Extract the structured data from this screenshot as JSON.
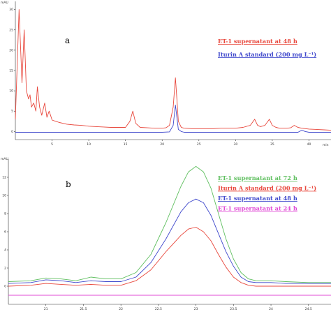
{
  "chart_data": [
    {
      "type": "line",
      "panel_label": "a",
      "y_unit": "mAU",
      "x_unit": "min",
      "x_ticks": [
        "5",
        "10",
        "15",
        "20",
        "25",
        "30",
        "35",
        "40"
      ],
      "y_ticks": [
        "0",
        "5",
        "10",
        "15",
        "20",
        "25",
        "30"
      ],
      "xlim": [
        0,
        43
      ],
      "ylim": [
        -2,
        32
      ],
      "series": [
        {
          "name": "ET-1 supernatant at 48 h",
          "color": "#e8473c",
          "x": [
            0.0,
            0.5,
            0.9,
            1.2,
            1.5,
            1.8,
            2.0,
            2.2,
            2.5,
            2.8,
            3.0,
            3.3,
            3.6,
            4.0,
            4.3,
            4.6,
            5.0,
            5.5,
            6.0,
            6.5,
            7.0,
            8.0,
            9.0,
            10.0,
            11.0,
            12.0,
            13.0,
            14.0,
            15.0,
            15.6,
            16.0,
            16.4,
            17.0,
            18.0,
            19.0,
            20.0,
            20.5,
            21.0,
            21.5,
            21.8,
            22.0,
            22.2,
            22.6,
            23.0,
            24.0,
            25.0,
            26.0,
            27.0,
            28.0,
            29.0,
            30.0,
            31.0,
            32.0,
            32.6,
            33.0,
            33.4,
            34.0,
            34.6,
            35.0,
            35.5,
            36.0,
            37.0,
            37.5,
            38.0,
            38.5,
            39.0,
            39.5,
            40.0,
            41.0,
            42.0,
            43.0
          ],
          "y": [
            3,
            30,
            12,
            25,
            10,
            8,
            9,
            6,
            7,
            5,
            11,
            6,
            4,
            7,
            3.5,
            5,
            2.8,
            2.5,
            2.2,
            2.0,
            1.8,
            1.6,
            1.5,
            1.3,
            1.2,
            1.1,
            1.0,
            1.0,
            1.0,
            2.5,
            5.0,
            2.0,
            1.0,
            0.9,
            0.8,
            0.8,
            0.9,
            1.5,
            6.0,
            13.2,
            8.0,
            2.5,
            1.0,
            0.8,
            0.7,
            0.7,
            0.7,
            0.7,
            0.8,
            0.8,
            0.8,
            1.0,
            1.5,
            3.0,
            1.5,
            1.2,
            1.5,
            3.0,
            1.5,
            1.0,
            0.8,
            0.8,
            0.9,
            1.5,
            1.0,
            0.8,
            0.7,
            0.6,
            0.5,
            0.4,
            0.3
          ]
        },
        {
          "name": "Iturin A standard (200 mg L⁻¹)",
          "color": "#3f48cc",
          "x": [
            0.0,
            5.0,
            10.0,
            15.0,
            20.0,
            21.0,
            21.5,
            21.8,
            22.0,
            22.2,
            22.6,
            23.0,
            25.0,
            30.0,
            35.0,
            38.5,
            39.0,
            39.5,
            40.0,
            43.0
          ],
          "y": [
            -0.2,
            -0.2,
            -0.2,
            -0.2,
            -0.2,
            -0.1,
            1.5,
            6.5,
            3.5,
            0.5,
            0.0,
            -0.2,
            -0.2,
            -0.2,
            -0.2,
            -0.2,
            0.3,
            0.0,
            -0.2,
            -0.2
          ]
        }
      ]
    },
    {
      "type": "line",
      "panel_label": "b",
      "y_unit": "mAU",
      "x_ticks": [
        "21",
        "21.5",
        "22",
        "22.5",
        "23",
        "23.5",
        "24",
        "24.5"
      ],
      "y_ticks": [
        "0",
        "2",
        "4",
        "6",
        "8",
        "10",
        "12"
      ],
      "xlim": [
        20.5,
        24.8
      ],
      "ylim": [
        -2,
        14
      ],
      "series": [
        {
          "name": "ET-1 supernatant at 72 h",
          "color": "#5fbf5f",
          "x": [
            20.5,
            20.8,
            21.0,
            21.2,
            21.4,
            21.6,
            21.8,
            22.0,
            22.2,
            22.4,
            22.6,
            22.8,
            22.9,
            23.0,
            23.1,
            23.2,
            23.3,
            23.4,
            23.5,
            23.6,
            23.7,
            23.8,
            24.0,
            24.2,
            24.5,
            24.8
          ],
          "y": [
            0.5,
            0.6,
            0.9,
            0.8,
            0.6,
            1.0,
            0.8,
            0.8,
            1.5,
            3.5,
            7.0,
            11.0,
            12.6,
            13.2,
            12.6,
            10.8,
            8.0,
            5.2,
            3.0,
            1.5,
            0.8,
            0.6,
            0.6,
            0.5,
            0.4,
            0.4
          ]
        },
        {
          "name": "Iturin A standard (200 mg L⁻¹)",
          "color": "#e8473c",
          "x": [
            20.5,
            20.8,
            21.0,
            21.2,
            21.4,
            21.6,
            21.8,
            22.0,
            22.2,
            22.4,
            22.6,
            22.8,
            22.9,
            23.0,
            23.1,
            23.2,
            23.3,
            23.4,
            23.5,
            23.6,
            23.7,
            23.8,
            24.0,
            24.2,
            24.5,
            24.8
          ],
          "y": [
            0.0,
            0.1,
            0.3,
            0.2,
            0.1,
            0.2,
            0.1,
            0.1,
            0.6,
            1.8,
            3.8,
            5.6,
            6.3,
            6.5,
            6.0,
            5.0,
            3.5,
            2.1,
            1.0,
            0.4,
            0.1,
            0.0,
            0.0,
            0.0,
            0.0,
            0.0
          ]
        },
        {
          "name": "ET-1 supernatant at 48 h",
          "color": "#3f48cc",
          "x": [
            20.5,
            20.8,
            21.0,
            21.2,
            21.4,
            21.6,
            21.8,
            22.0,
            22.2,
            22.4,
            22.6,
            22.8,
            22.9,
            23.0,
            23.1,
            23.2,
            23.3,
            23.4,
            23.5,
            23.6,
            23.7,
            23.8,
            24.0,
            24.2,
            24.5,
            24.8
          ],
          "y": [
            0.3,
            0.4,
            0.7,
            0.6,
            0.4,
            0.6,
            0.5,
            0.5,
            1.0,
            2.6,
            5.2,
            8.2,
            9.2,
            9.6,
            9.2,
            7.8,
            5.8,
            3.8,
            2.2,
            1.0,
            0.5,
            0.4,
            0.4,
            0.3,
            0.3,
            0.3
          ]
        },
        {
          "name": "ET-1 supernatant at 24 h",
          "color": "#e04bd6",
          "x": [
            20.5,
            21.0,
            22.0,
            23.0,
            24.0,
            24.8
          ],
          "y": [
            -1.0,
            -1.0,
            -1.0,
            -1.0,
            -1.0,
            -1.0
          ]
        }
      ]
    }
  ]
}
